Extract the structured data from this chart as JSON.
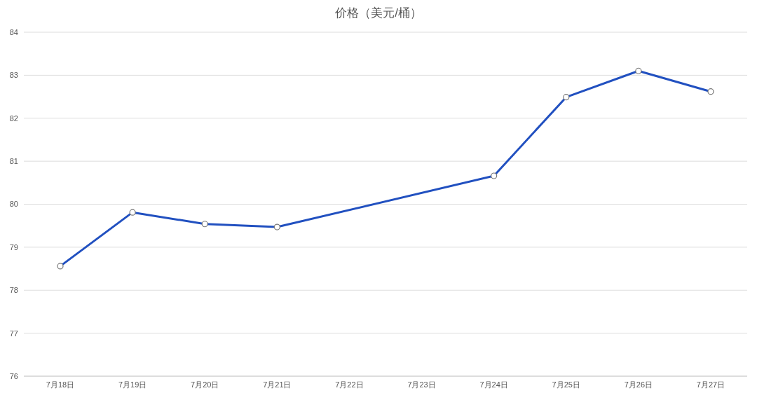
{
  "chart_data": {
    "type": "line",
    "title": "价格（美元/桶）",
    "categories": [
      "7月18日",
      "7月19日",
      "7月20日",
      "7月21日",
      "7月22日",
      "7月23日",
      "7月24日",
      "7月25日",
      "7月26日",
      "7月27日"
    ],
    "series": [
      {
        "color": "#2150c0",
        "values": [
          78.56,
          79.81,
          79.54,
          79.47,
          null,
          null,
          80.66,
          82.49,
          83.1,
          82.62
        ]
      }
    ],
    "ylim": [
      76,
      84
    ],
    "yticks": [
      76,
      77,
      78,
      79,
      80,
      81,
      82,
      83,
      84
    ],
    "grid": "y",
    "marker": "circle",
    "line_style": "solid",
    "legend": false
  }
}
